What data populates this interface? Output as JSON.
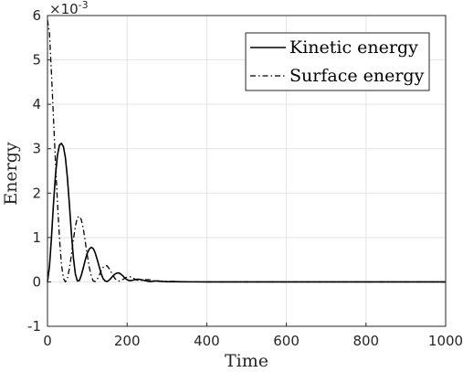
{
  "chart_data": {
    "type": "line",
    "title": "",
    "xlabel": "Time",
    "ylabel": "Energy",
    "xlim": [
      0,
      1000
    ],
    "ylim": [
      -1,
      6
    ],
    "y_scale_exponent": "-3",
    "y_multiplier_base": "×10",
    "grid": true,
    "legend_position": "top-right",
    "x_ticks": [
      "0",
      "200",
      "400",
      "600",
      "800",
      "1000"
    ],
    "y_ticks": [
      "-1",
      "0",
      "1",
      "2",
      "3",
      "4",
      "5",
      "6"
    ],
    "series": [
      {
        "name": "Kinetic energy",
        "line_style": "solid",
        "color": "#000000",
        "x": [
          0,
          5,
          10,
          15,
          20,
          25,
          30,
          35,
          40,
          45,
          50,
          55,
          60,
          65,
          70,
          75,
          80,
          85,
          90,
          95,
          100,
          105,
          110,
          115,
          120,
          125,
          130,
          135,
          140,
          145,
          150,
          155,
          160,
          165,
          170,
          175,
          180,
          185,
          190,
          195,
          200,
          205,
          210,
          215,
          220,
          225,
          230,
          235,
          240,
          245,
          250,
          255,
          260,
          265,
          270,
          275,
          280,
          290,
          300,
          310,
          320,
          340,
          360,
          400,
          500,
          600,
          700,
          800,
          900,
          1000
        ],
        "y": [
          0,
          0.35,
          1.0,
          1.75,
          2.4,
          2.85,
          3.08,
          3.12,
          3.05,
          2.8,
          2.35,
          1.75,
          1.1,
          0.55,
          0.18,
          0.02,
          0.03,
          0.15,
          0.32,
          0.5,
          0.65,
          0.74,
          0.78,
          0.75,
          0.65,
          0.5,
          0.34,
          0.18,
          0.07,
          0.02,
          0.01,
          0.04,
          0.09,
          0.14,
          0.18,
          0.2,
          0.2,
          0.17,
          0.13,
          0.08,
          0.05,
          0.03,
          0.03,
          0.04,
          0.05,
          0.06,
          0.06,
          0.05,
          0.04,
          0.03,
          0.02,
          0.01,
          0.01,
          0.015,
          0.02,
          0.02,
          0.015,
          0.01,
          0.005,
          0.005,
          0.005,
          0.002,
          0.001,
          0,
          0,
          0,
          0,
          0,
          0,
          0
        ]
      },
      {
        "name": "Surface energy",
        "line_style": "dash-dot",
        "color": "#000000",
        "x": [
          0,
          5,
          10,
          15,
          20,
          25,
          30,
          35,
          40,
          45,
          50,
          55,
          60,
          65,
          70,
          75,
          80,
          85,
          90,
          95,
          100,
          105,
          110,
          115,
          120,
          125,
          130,
          135,
          140,
          145,
          150,
          155,
          160,
          165,
          170,
          175,
          180,
          185,
          190,
          195,
          200,
          205,
          210,
          215,
          220,
          225,
          230,
          235,
          240,
          245,
          250,
          255,
          260,
          265,
          270,
          275,
          280,
          290,
          300,
          310,
          320,
          340,
          360,
          400,
          500,
          600,
          700,
          800,
          900,
          1000
        ],
        "y": [
          5.9,
          5.6,
          4.7,
          3.7,
          2.7,
          1.8,
          1.0,
          0.4,
          0.08,
          0.0,
          0.08,
          0.3,
          0.6,
          0.95,
          1.25,
          1.45,
          1.48,
          1.4,
          1.2,
          0.9,
          0.6,
          0.33,
          0.13,
          0.02,
          0.01,
          0.06,
          0.15,
          0.25,
          0.33,
          0.37,
          0.36,
          0.3,
          0.22,
          0.14,
          0.07,
          0.03,
          0.02,
          0.03,
          0.06,
          0.09,
          0.11,
          0.12,
          0.11,
          0.09,
          0.06,
          0.04,
          0.03,
          0.03,
          0.04,
          0.05,
          0.05,
          0.05,
          0.04,
          0.03,
          0.02,
          0.02,
          0.02,
          0.015,
          0.01,
          0.01,
          0.01,
          0.005,
          0.003,
          0,
          0,
          0,
          0,
          0,
          0,
          0
        ]
      }
    ]
  }
}
